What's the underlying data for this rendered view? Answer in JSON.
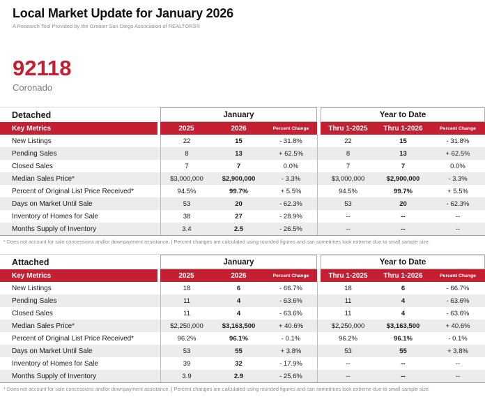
{
  "header": {
    "title": "Local Market Update for January 2026",
    "subtitle": "A Research Tool Provided by the Greater San Diego Association of REALTORS®"
  },
  "location": {
    "zip": "92118",
    "city": "Coronado"
  },
  "colors": {
    "accent_red": "#C42032",
    "row_stripe": "#ECECEC",
    "border_gray": "#BDBDBD"
  },
  "columns": {
    "key_metrics": "Key Metrics",
    "month_group": "January",
    "ytd_group": "Year to Date",
    "month_cols": [
      "2025",
      "2026",
      "Percent Change"
    ],
    "ytd_cols": [
      "Thru 1-2025",
      "Thru 1-2026",
      "Percent Change"
    ]
  },
  "footnote": "* Does not account for sale concessions and/or downpayment assistance.  |  Percent changes are calculated using rounded figures and can sometimes look extreme due to small sample size.",
  "tables": [
    {
      "name": "Detached",
      "rows": [
        {
          "label": "New Listings",
          "m2025": "22",
          "m2026": "15",
          "mchg": "- 31.8%",
          "y2025": "22",
          "y2026": "15",
          "ychg": "- 31.8%"
        },
        {
          "label": "Pending Sales",
          "m2025": "8",
          "m2026": "13",
          "mchg": "+ 62.5%",
          "y2025": "8",
          "y2026": "13",
          "ychg": "+ 62.5%"
        },
        {
          "label": "Closed Sales",
          "m2025": "7",
          "m2026": "7",
          "mchg": "0.0%",
          "y2025": "7",
          "y2026": "7",
          "ychg": "0.0%"
        },
        {
          "label": "Median Sales Price*",
          "m2025": "$3,000,000",
          "m2026": "$2,900,000",
          "mchg": "- 3.3%",
          "y2025": "$3,000,000",
          "y2026": "$2,900,000",
          "ychg": "- 3.3%"
        },
        {
          "label": "Percent of Original List Price Received*",
          "m2025": "94.5%",
          "m2026": "99.7%",
          "mchg": "+ 5.5%",
          "y2025": "94.5%",
          "y2026": "99.7%",
          "ychg": "+ 5.5%"
        },
        {
          "label": "Days on Market Until Sale",
          "m2025": "53",
          "m2026": "20",
          "mchg": "- 62.3%",
          "y2025": "53",
          "y2026": "20",
          "ychg": "- 62.3%"
        },
        {
          "label": "Inventory of Homes for Sale",
          "m2025": "38",
          "m2026": "27",
          "mchg": "- 28.9%",
          "y2025": "--",
          "y2026": "--",
          "ychg": "--"
        },
        {
          "label": "Months Supply of Inventory",
          "m2025": "3.4",
          "m2026": "2.5",
          "mchg": "- 26.5%",
          "y2025": "--",
          "y2026": "--",
          "ychg": "--"
        }
      ]
    },
    {
      "name": "Attached",
      "rows": [
        {
          "label": "New Listings",
          "m2025": "18",
          "m2026": "6",
          "mchg": "- 66.7%",
          "y2025": "18",
          "y2026": "6",
          "ychg": "- 66.7%"
        },
        {
          "label": "Pending Sales",
          "m2025": "11",
          "m2026": "4",
          "mchg": "- 63.6%",
          "y2025": "11",
          "y2026": "4",
          "ychg": "- 63.6%"
        },
        {
          "label": "Closed Sales",
          "m2025": "11",
          "m2026": "4",
          "mchg": "- 63.6%",
          "y2025": "11",
          "y2026": "4",
          "ychg": "- 63.6%"
        },
        {
          "label": "Median Sales Price*",
          "m2025": "$2,250,000",
          "m2026": "$3,163,500",
          "mchg": "+ 40.6%",
          "y2025": "$2,250,000",
          "y2026": "$3,163,500",
          "ychg": "+ 40.6%"
        },
        {
          "label": "Percent of Original List Price Received*",
          "m2025": "96.2%",
          "m2026": "96.1%",
          "mchg": "- 0.1%",
          "y2025": "96.2%",
          "y2026": "96.1%",
          "ychg": "- 0.1%"
        },
        {
          "label": "Days on Market Until Sale",
          "m2025": "53",
          "m2026": "55",
          "mchg": "+ 3.8%",
          "y2025": "53",
          "y2026": "55",
          "ychg": "+ 3.8%"
        },
        {
          "label": "Inventory of Homes for Sale",
          "m2025": "39",
          "m2026": "32",
          "mchg": "- 17.9%",
          "y2025": "--",
          "y2026": "--",
          "ychg": "--"
        },
        {
          "label": "Months Supply of Inventory",
          "m2025": "3.9",
          "m2026": "2.9",
          "mchg": "- 25.6%",
          "y2025": "--",
          "y2026": "--",
          "ychg": "--"
        }
      ]
    }
  ]
}
